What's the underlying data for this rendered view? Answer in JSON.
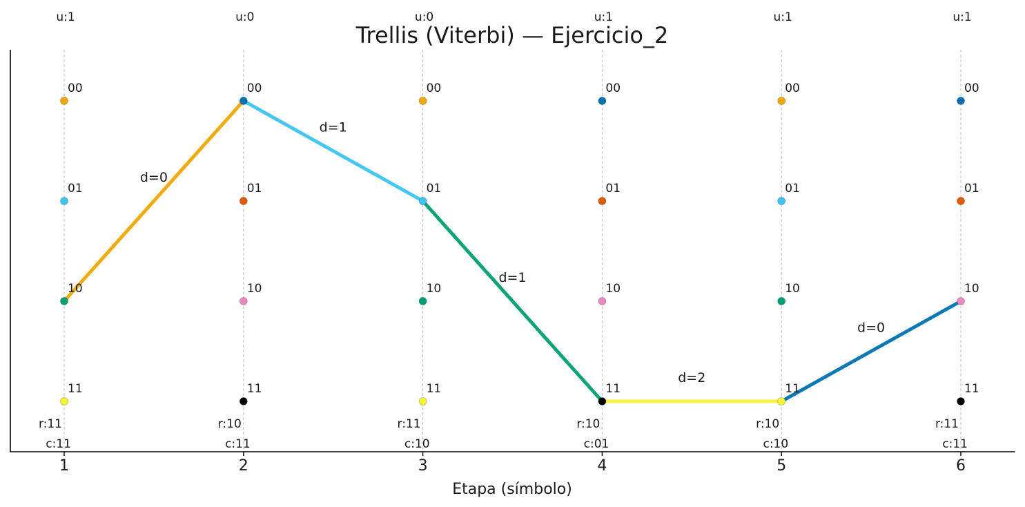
{
  "title": "Trellis (Viterbi) — Ejercicio_2",
  "xlabel": "Etapa (símbolo)",
  "stages": [
    {
      "tick": "1",
      "u": "u:1",
      "r": "r:11",
      "c": "c:11"
    },
    {
      "tick": "2",
      "u": "u:0",
      "r": "r:10",
      "c": "c:11"
    },
    {
      "tick": "3",
      "u": "u:0",
      "r": "r:11",
      "c": "c:10"
    },
    {
      "tick": "4",
      "u": "u:1",
      "r": "r:10",
      "c": "c:01"
    },
    {
      "tick": "5",
      "u": "u:1",
      "r": "r:10",
      "c": "c:10"
    },
    {
      "tick": "6",
      "u": "u:1",
      "r": "r:11",
      "c": "c:11"
    }
  ],
  "states": [
    "00",
    "01",
    "10",
    "11"
  ],
  "node_colors": [
    [
      "#f0a800",
      "#3ec5f0",
      "#009e73",
      "#f5f535"
    ],
    [
      "#0072b2",
      "#e05a00",
      "#e88ac0",
      "#000000"
    ],
    [
      "#f0a800",
      "#3ec5f0",
      "#009e73",
      "#f5f535"
    ],
    [
      "#0072b2",
      "#e05a00",
      "#e88ac0",
      "#000000"
    ],
    [
      "#f0a800",
      "#3ec5f0",
      "#009e73",
      "#f5f535"
    ],
    [
      "#0072b2",
      "#e05a00",
      "#e88ac0",
      "#000000"
    ]
  ],
  "path": [
    {
      "from_stage": 1,
      "from_state": "10",
      "to_stage": 2,
      "to_state": "00",
      "label": "d=0",
      "color": "#f0a800"
    },
    {
      "from_stage": 2,
      "from_state": "00",
      "to_stage": 3,
      "to_state": "01",
      "label": "d=1",
      "color": "#3ec5f0"
    },
    {
      "from_stage": 3,
      "from_state": "01",
      "to_stage": 4,
      "to_state": "11",
      "label": "d=1",
      "color": "#009e73"
    },
    {
      "from_stage": 4,
      "from_state": "11",
      "to_stage": 5,
      "to_state": "11",
      "label": "d=2",
      "color": "#f5f535"
    },
    {
      "from_stage": 5,
      "from_state": "11",
      "to_stage": 6,
      "to_state": "10",
      "label": "d=0",
      "color": "#0072b2"
    }
  ]
}
